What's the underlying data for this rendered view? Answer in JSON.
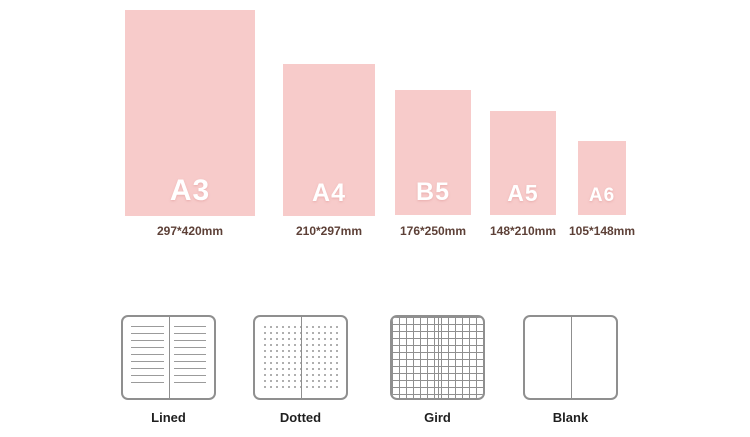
{
  "paper_sizes": [
    {
      "name": "A3",
      "dimensions": "297*420mm"
    },
    {
      "name": "A4",
      "dimensions": "210*297mm"
    },
    {
      "name": "B5",
      "dimensions": "176*250mm"
    },
    {
      "name": "A5",
      "dimensions": "148*210mm"
    },
    {
      "name": "A6",
      "dimensions": "105*148mm"
    }
  ],
  "page_styles": [
    {
      "label": "Lined"
    },
    {
      "label": "Dotted"
    },
    {
      "label": "Gird"
    },
    {
      "label": "Blank"
    }
  ],
  "colors": {
    "paper_pink": "#f7cbca",
    "dimension_text": "#5d4037",
    "style_label_text": "#1f1f1f"
  }
}
